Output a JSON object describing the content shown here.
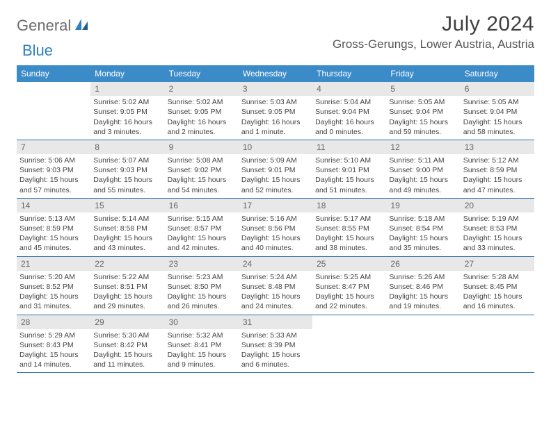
{
  "brand": {
    "part1": "General",
    "part2": "Blue"
  },
  "title": "July 2024",
  "location": "Gross-Gerungs, Lower Austria, Austria",
  "colors": {
    "header_bg": "#3b8bc9",
    "header_text": "#ffffff",
    "daynum_bg": "#e8e8e8",
    "border": "#2d6fa8",
    "brand_gray": "#6b6b6b",
    "brand_blue": "#2d7fc1"
  },
  "day_names": [
    "Sunday",
    "Monday",
    "Tuesday",
    "Wednesday",
    "Thursday",
    "Friday",
    "Saturday"
  ],
  "weeks": [
    [
      null,
      {
        "n": "1",
        "sr": "Sunrise: 5:02 AM",
        "ss": "Sunset: 9:05 PM",
        "d1": "Daylight: 16 hours",
        "d2": "and 3 minutes."
      },
      {
        "n": "2",
        "sr": "Sunrise: 5:02 AM",
        "ss": "Sunset: 9:05 PM",
        "d1": "Daylight: 16 hours",
        "d2": "and 2 minutes."
      },
      {
        "n": "3",
        "sr": "Sunrise: 5:03 AM",
        "ss": "Sunset: 9:05 PM",
        "d1": "Daylight: 16 hours",
        "d2": "and 1 minute."
      },
      {
        "n": "4",
        "sr": "Sunrise: 5:04 AM",
        "ss": "Sunset: 9:04 PM",
        "d1": "Daylight: 16 hours",
        "d2": "and 0 minutes."
      },
      {
        "n": "5",
        "sr": "Sunrise: 5:05 AM",
        "ss": "Sunset: 9:04 PM",
        "d1": "Daylight: 15 hours",
        "d2": "and 59 minutes."
      },
      {
        "n": "6",
        "sr": "Sunrise: 5:05 AM",
        "ss": "Sunset: 9:04 PM",
        "d1": "Daylight: 15 hours",
        "d2": "and 58 minutes."
      }
    ],
    [
      {
        "n": "7",
        "sr": "Sunrise: 5:06 AM",
        "ss": "Sunset: 9:03 PM",
        "d1": "Daylight: 15 hours",
        "d2": "and 57 minutes."
      },
      {
        "n": "8",
        "sr": "Sunrise: 5:07 AM",
        "ss": "Sunset: 9:03 PM",
        "d1": "Daylight: 15 hours",
        "d2": "and 55 minutes."
      },
      {
        "n": "9",
        "sr": "Sunrise: 5:08 AM",
        "ss": "Sunset: 9:02 PM",
        "d1": "Daylight: 15 hours",
        "d2": "and 54 minutes."
      },
      {
        "n": "10",
        "sr": "Sunrise: 5:09 AM",
        "ss": "Sunset: 9:01 PM",
        "d1": "Daylight: 15 hours",
        "d2": "and 52 minutes."
      },
      {
        "n": "11",
        "sr": "Sunrise: 5:10 AM",
        "ss": "Sunset: 9:01 PM",
        "d1": "Daylight: 15 hours",
        "d2": "and 51 minutes."
      },
      {
        "n": "12",
        "sr": "Sunrise: 5:11 AM",
        "ss": "Sunset: 9:00 PM",
        "d1": "Daylight: 15 hours",
        "d2": "and 49 minutes."
      },
      {
        "n": "13",
        "sr": "Sunrise: 5:12 AM",
        "ss": "Sunset: 8:59 PM",
        "d1": "Daylight: 15 hours",
        "d2": "and 47 minutes."
      }
    ],
    [
      {
        "n": "14",
        "sr": "Sunrise: 5:13 AM",
        "ss": "Sunset: 8:59 PM",
        "d1": "Daylight: 15 hours",
        "d2": "and 45 minutes."
      },
      {
        "n": "15",
        "sr": "Sunrise: 5:14 AM",
        "ss": "Sunset: 8:58 PM",
        "d1": "Daylight: 15 hours",
        "d2": "and 43 minutes."
      },
      {
        "n": "16",
        "sr": "Sunrise: 5:15 AM",
        "ss": "Sunset: 8:57 PM",
        "d1": "Daylight: 15 hours",
        "d2": "and 42 minutes."
      },
      {
        "n": "17",
        "sr": "Sunrise: 5:16 AM",
        "ss": "Sunset: 8:56 PM",
        "d1": "Daylight: 15 hours",
        "d2": "and 40 minutes."
      },
      {
        "n": "18",
        "sr": "Sunrise: 5:17 AM",
        "ss": "Sunset: 8:55 PM",
        "d1": "Daylight: 15 hours",
        "d2": "and 38 minutes."
      },
      {
        "n": "19",
        "sr": "Sunrise: 5:18 AM",
        "ss": "Sunset: 8:54 PM",
        "d1": "Daylight: 15 hours",
        "d2": "and 35 minutes."
      },
      {
        "n": "20",
        "sr": "Sunrise: 5:19 AM",
        "ss": "Sunset: 8:53 PM",
        "d1": "Daylight: 15 hours",
        "d2": "and 33 minutes."
      }
    ],
    [
      {
        "n": "21",
        "sr": "Sunrise: 5:20 AM",
        "ss": "Sunset: 8:52 PM",
        "d1": "Daylight: 15 hours",
        "d2": "and 31 minutes."
      },
      {
        "n": "22",
        "sr": "Sunrise: 5:22 AM",
        "ss": "Sunset: 8:51 PM",
        "d1": "Daylight: 15 hours",
        "d2": "and 29 minutes."
      },
      {
        "n": "23",
        "sr": "Sunrise: 5:23 AM",
        "ss": "Sunset: 8:50 PM",
        "d1": "Daylight: 15 hours",
        "d2": "and 26 minutes."
      },
      {
        "n": "24",
        "sr": "Sunrise: 5:24 AM",
        "ss": "Sunset: 8:48 PM",
        "d1": "Daylight: 15 hours",
        "d2": "and 24 minutes."
      },
      {
        "n": "25",
        "sr": "Sunrise: 5:25 AM",
        "ss": "Sunset: 8:47 PM",
        "d1": "Daylight: 15 hours",
        "d2": "and 22 minutes."
      },
      {
        "n": "26",
        "sr": "Sunrise: 5:26 AM",
        "ss": "Sunset: 8:46 PM",
        "d1": "Daylight: 15 hours",
        "d2": "and 19 minutes."
      },
      {
        "n": "27",
        "sr": "Sunrise: 5:28 AM",
        "ss": "Sunset: 8:45 PM",
        "d1": "Daylight: 15 hours",
        "d2": "and 16 minutes."
      }
    ],
    [
      {
        "n": "28",
        "sr": "Sunrise: 5:29 AM",
        "ss": "Sunset: 8:43 PM",
        "d1": "Daylight: 15 hours",
        "d2": "and 14 minutes."
      },
      {
        "n": "29",
        "sr": "Sunrise: 5:30 AM",
        "ss": "Sunset: 8:42 PM",
        "d1": "Daylight: 15 hours",
        "d2": "and 11 minutes."
      },
      {
        "n": "30",
        "sr": "Sunrise: 5:32 AM",
        "ss": "Sunset: 8:41 PM",
        "d1": "Daylight: 15 hours",
        "d2": "and 9 minutes."
      },
      {
        "n": "31",
        "sr": "Sunrise: 5:33 AM",
        "ss": "Sunset: 8:39 PM",
        "d1": "Daylight: 15 hours",
        "d2": "and 6 minutes."
      },
      null,
      null,
      null
    ]
  ]
}
